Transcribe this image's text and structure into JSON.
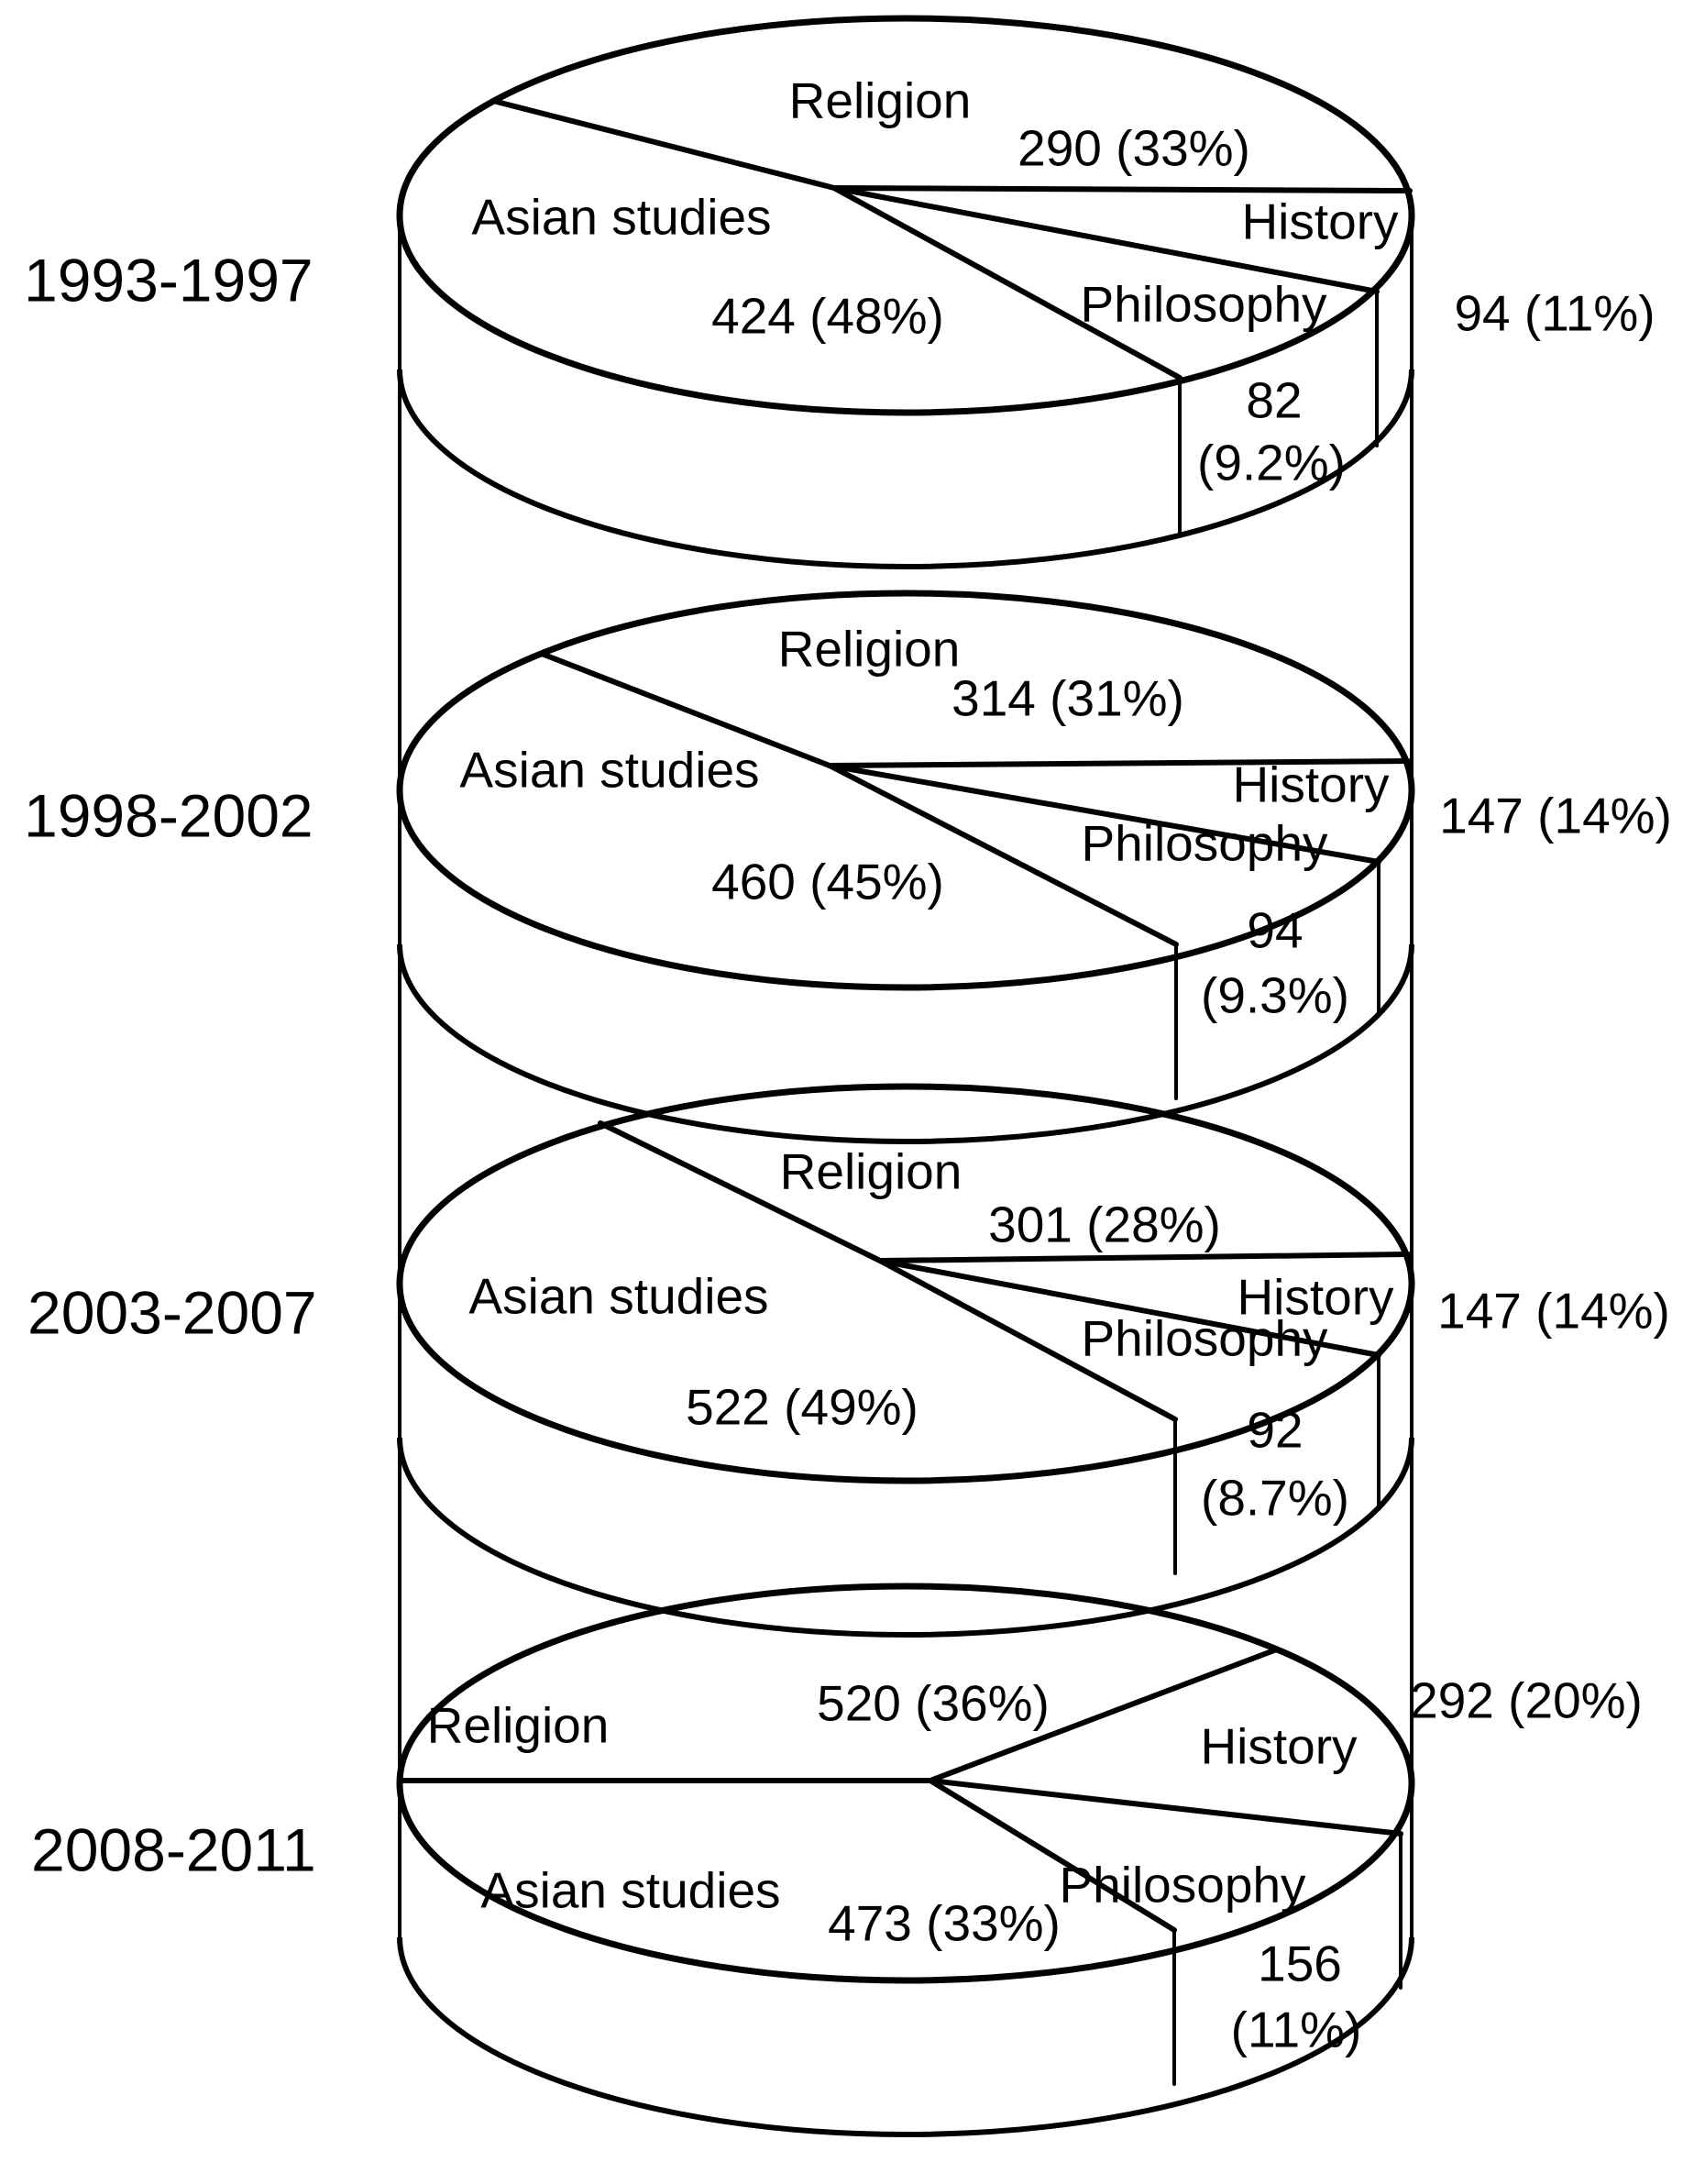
{
  "colors": {
    "line": "#000000",
    "text": "#000000",
    "background": "#ffffff"
  },
  "figure": {
    "pies": [
      {
        "period": "1993-1997",
        "religion": "Religion",
        "religion_value": "290 (33%)",
        "asian": "Asian studies",
        "asian_value": "424 (48%)",
        "history": "History",
        "history_value": "94 (11%)",
        "philosophy": "Philosophy",
        "philosophy_value_line1": "82",
        "philosophy_value_line2": "(9.2%)"
      },
      {
        "period": "1998-2002",
        "religion": "Religion",
        "religion_value": "314 (31%)",
        "asian": "Asian studies",
        "asian_value": "460 (45%)",
        "history": "History",
        "history_value": "147 (14%)",
        "philosophy": "Philosophy",
        "philosophy_value_line1": "94",
        "philosophy_value_line2": "(9.3%)"
      },
      {
        "period": "2003-2007",
        "religion": "Religion",
        "religion_value": "301 (28%)",
        "asian": "Asian studies",
        "asian_value": "522 (49%)",
        "history": "History",
        "history_value": "147 (14%)",
        "philosophy": "Philosophy",
        "philosophy_value_line1": "92",
        "philosophy_value_line2": "(8.7%)"
      },
      {
        "period": "2008-2011",
        "religion": "Religion",
        "religion_value": "520 (36%)",
        "asian": "Asian studies",
        "asian_value": "473 (33%)",
        "history": "History",
        "history_value": "292 (20%)",
        "philosophy": "Philosophy",
        "philosophy_value_line1": "156",
        "philosophy_value_line2": "(11%)"
      }
    ]
  },
  "chart_data": [
    {
      "type": "pie",
      "title": "1993-1997",
      "categories": [
        "Asian studies",
        "Religion",
        "History",
        "Philosophy"
      ],
      "values": [
        424,
        290,
        94,
        82
      ],
      "value_labels": [
        "424 (48%)",
        "290 (33%)",
        "94 (11%)",
        "82 (9.2%)"
      ],
      "legend_position": "inside-slices"
    },
    {
      "type": "pie",
      "title": "1998-2002",
      "categories": [
        "Asian studies",
        "Religion",
        "History",
        "Philosophy"
      ],
      "values": [
        460,
        314,
        147,
        94
      ],
      "value_labels": [
        "460 (45%)",
        "314 (31%)",
        "147 (14%)",
        "94 (9.3%)"
      ],
      "legend_position": "inside-slices"
    },
    {
      "type": "pie",
      "title": "2003-2007",
      "categories": [
        "Asian studies",
        "Religion",
        "History",
        "Philosophy"
      ],
      "values": [
        522,
        301,
        147,
        92
      ],
      "value_labels": [
        "522 (49%)",
        "301 (28%)",
        "147 (14%)",
        "92 (8.7%)"
      ],
      "legend_position": "inside-slices"
    },
    {
      "type": "pie",
      "title": "2008-2011",
      "categories": [
        "Asian studies",
        "Religion",
        "History",
        "Philosophy"
      ],
      "values": [
        473,
        520,
        292,
        156
      ],
      "value_labels": [
        "473 (33%)",
        "520 (36%)",
        "292 (20%)",
        "156 (11%)"
      ],
      "legend_position": "inside-slices"
    }
  ]
}
